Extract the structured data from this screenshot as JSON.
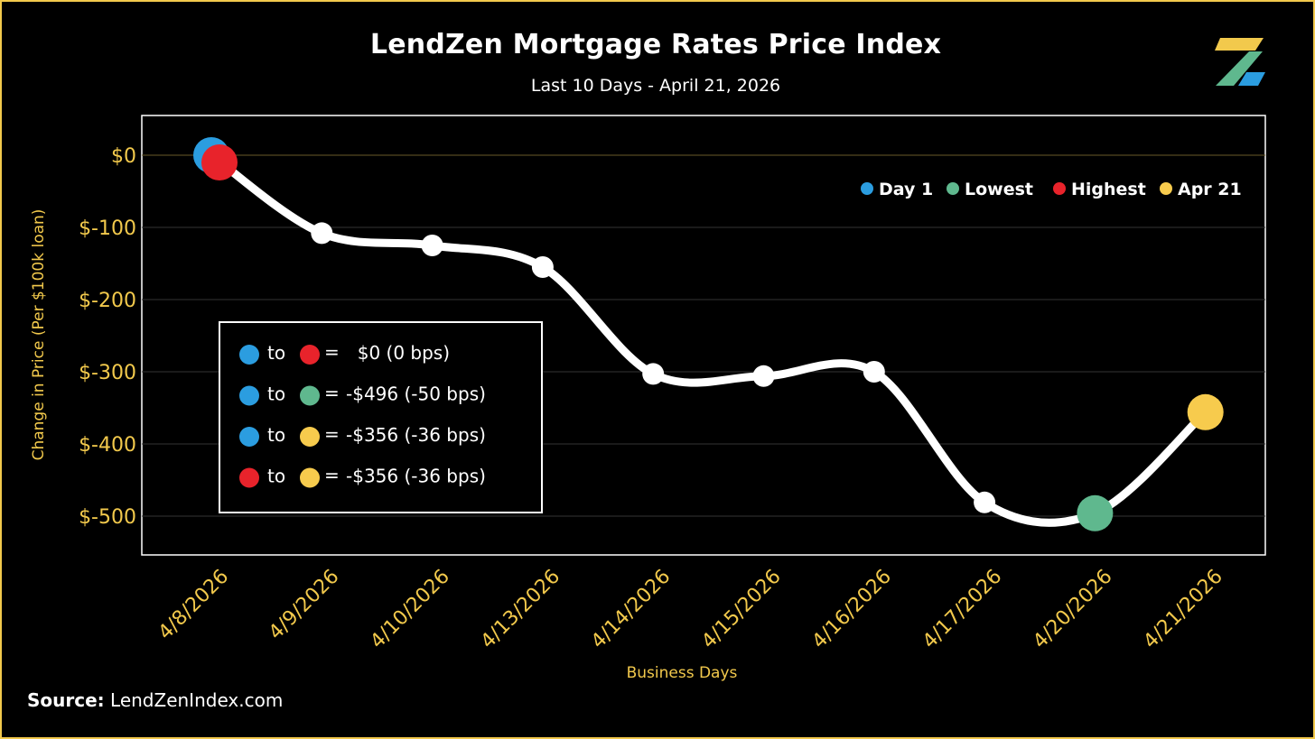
{
  "header": {
    "title": "LendZen Mortgage Rates Price Index",
    "subtitle": "Last 10 Days - April 21, 2026",
    "logo_icon": "lendzen-z-logo-icon"
  },
  "footer": {
    "source_label": "Source:",
    "source_value": "LendZenIndex.com"
  },
  "colors": {
    "background": "#000000",
    "frame_border": "#f2c94c",
    "axis_text": "#f2c94c",
    "line": "#ffffff",
    "day1": "#2b9de0",
    "lowest": "#5fb88e",
    "highest": "#e8232b",
    "latest": "#f7cb4d"
  },
  "chart_data": {
    "type": "line",
    "title": "LendZen Mortgage Rates Price Index",
    "subtitle": "Last 10 Days - April 21, 2026",
    "xlabel": "Business Days",
    "ylabel": "Change in Price (Per $100k loan)",
    "ylim": [
      -550,
      55
    ],
    "yticks": [
      0,
      -100,
      -200,
      -300,
      -400,
      -500
    ],
    "ytick_labels": [
      "$0",
      "$-100",
      "$-200",
      "$-300",
      "$-400",
      "$-500"
    ],
    "grid": true,
    "categories": [
      "4/8/2026",
      "4/9/2026",
      "4/10/2026",
      "4/13/2026",
      "4/14/2026",
      "4/15/2026",
      "4/16/2026",
      "4/17/2026",
      "4/20/2026",
      "4/21/2026"
    ],
    "series": [
      {
        "name": "Change in Price",
        "values": [
          0,
          -108,
          -125,
          -155,
          -303,
          -306,
          -300,
          -481,
          -496,
          -356
        ]
      }
    ],
    "highlights": [
      {
        "key": "day1",
        "label": "Day 1",
        "index": 0,
        "offset": "behind-highest"
      },
      {
        "key": "highest",
        "label": "Highest",
        "index": 0,
        "offset": "front"
      },
      {
        "key": "lowest",
        "label": "Lowest",
        "index": 8,
        "offset": "none"
      },
      {
        "key": "latest",
        "label": "Apr 21",
        "index": 9,
        "offset": "none"
      }
    ],
    "legend": {
      "placement": "top-right",
      "entries": [
        {
          "label": "Day 1",
          "color_key": "day1"
        },
        {
          "label": "Lowest",
          "color_key": "lowest"
        },
        {
          "label": "Highest",
          "color_key": "highest"
        },
        {
          "label": "Apr 21",
          "color_key": "latest"
        }
      ]
    },
    "summary_box": {
      "placement": "bottom-left",
      "rows": [
        {
          "from": "day1",
          "connector": "to",
          "to": "highest",
          "equals": "=",
          "text": "  $0 (0 bps)"
        },
        {
          "from": "day1",
          "connector": "to",
          "to": "lowest",
          "equals": "=",
          "text": "-$496 (-50 bps)"
        },
        {
          "from": "day1",
          "connector": "to",
          "to": "latest",
          "equals": "=",
          "text": "-$356 (-36 bps)"
        },
        {
          "from": "highest",
          "connector": "to",
          "to": "latest",
          "equals": "=",
          "text": "-$356 (-36 bps)"
        }
      ]
    }
  }
}
